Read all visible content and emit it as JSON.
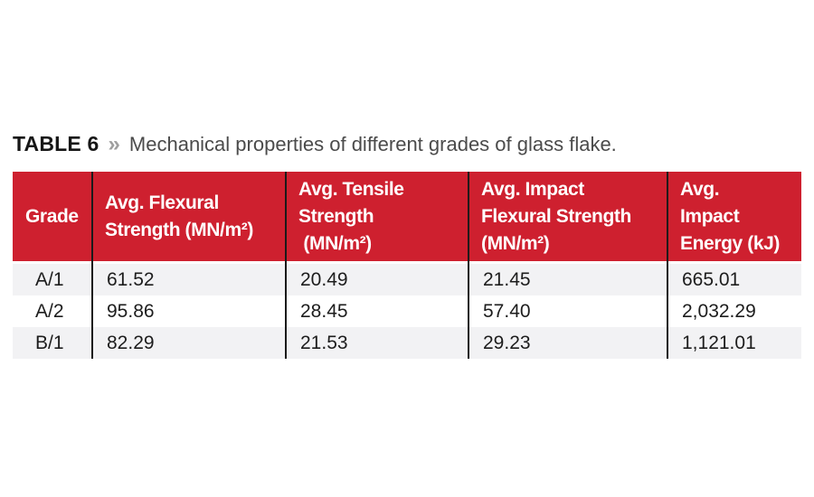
{
  "title": {
    "label": "TABLE 6",
    "separator": "»",
    "caption": "Mechanical properties of different grades of glass flake."
  },
  "colors": {
    "header_bg": "#ce202f",
    "header_text": "#ffffff",
    "divider": "#1a1a1a",
    "row_stripe": "#f2f2f4",
    "body_text": "#1d1d1d",
    "caption_text": "#4b4b4b",
    "separator_gray": "#9e9e9e"
  },
  "table": {
    "headers": [
      {
        "lines": [
          "Grade"
        ]
      },
      {
        "lines": [
          "Avg. Flexural",
          "Strength (MN/m²)"
        ]
      },
      {
        "lines": [
          "Avg. Tensile",
          "Strength",
          " (MN/m²)"
        ]
      },
      {
        "lines": [
          "Avg. Impact",
          "Flexural Strength",
          "(MN/m²)"
        ]
      },
      {
        "lines": [
          "Avg.",
          "Impact",
          "Energy (kJ)"
        ]
      }
    ],
    "rows": [
      [
        "A/1",
        "61.52",
        "20.49",
        "21.45",
        "665.01"
      ],
      [
        "A/2",
        "95.86",
        "28.45",
        "57.40",
        "2,032.29"
      ],
      [
        "B/1",
        "82.29",
        "21.53",
        "29.23",
        "1,121.01"
      ]
    ]
  },
  "chart_data": {
    "type": "table",
    "title": "TABLE 6 » Mechanical properties of different grades of glass flake.",
    "columns": [
      "Grade",
      "Avg. Flexural Strength (MN/m²)",
      "Avg. Tensile Strength (MN/m²)",
      "Avg. Impact Flexural Strength (MN/m²)",
      "Avg. Impact Energy (kJ)"
    ],
    "series": [
      {
        "name": "A/1",
        "values": [
          61.52,
          20.49,
          21.45,
          665.01
        ]
      },
      {
        "name": "A/2",
        "values": [
          95.86,
          28.45,
          57.4,
          2032.29
        ]
      },
      {
        "name": "B/1",
        "values": [
          82.29,
          21.53,
          29.23,
          1121.01
        ]
      }
    ]
  }
}
